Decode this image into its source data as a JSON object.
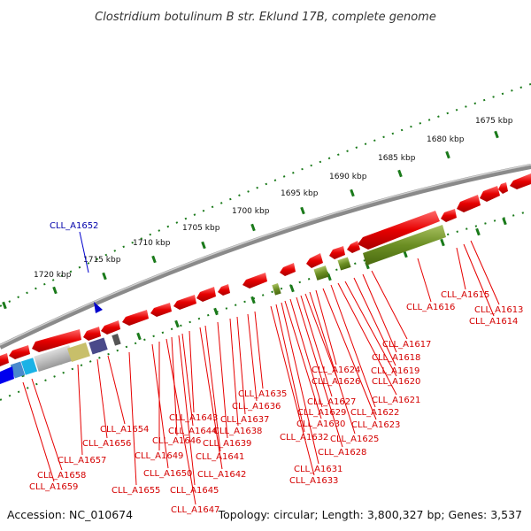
{
  "title": "Clostridium botulinum B str. Eklund 17B, complete genome",
  "footer": {
    "accession": "Accession: NC_010674",
    "summary": "Topology: circular; Length: 3,800,327 bp; Genes: 3,537"
  },
  "ticks": [
    "1675 kbp",
    "1680 kbp",
    "1685 kbp",
    "1690 kbp",
    "1695 kbp",
    "1700 kbp",
    "1705 kbp",
    "1710 kbp",
    "1715 kbp",
    "1720 kbp"
  ],
  "highlight": "CLL_A1652",
  "genes": [
    "CLL_A1613",
    "CLL_A1614",
    "CLL_A1615",
    "CLL_A1616",
    "CLL_A1617",
    "CLL_A1618",
    "CLL_A1619",
    "CLL_A1620",
    "CLL_A1621",
    "CLL_A1622",
    "CLL_A1623",
    "CLL_A1624",
    "CLL_A1625",
    "CLL_A1626",
    "CLL_A1627",
    "CLL_A1628",
    "CLL_A1629",
    "CLL_A1630",
    "CLL_A1631",
    "CLL_A1632",
    "CLL_A1633",
    "CLL_A1635",
    "CLL_A1636",
    "CLL_A1637",
    "CLL_A1638",
    "CLL_A1639",
    "CLL_A1641",
    "CLL_A1642",
    "CLL_A1643",
    "CLL_A1644",
    "CLL_A1645",
    "CLL_A1646",
    "CLL_A1647",
    "CLL_A1649",
    "CLL_A1650",
    "CLL_A1654",
    "CLL_A1655",
    "CLL_A1656",
    "CLL_A1657",
    "CLL_A1658",
    "CLL_A1659"
  ],
  "colors": {
    "gene": "#e60000",
    "label": "#d40000",
    "backbone": "#888888",
    "tick": "#1a7a1a",
    "olive": "#6b8e23",
    "highlight": "#0000cc"
  }
}
